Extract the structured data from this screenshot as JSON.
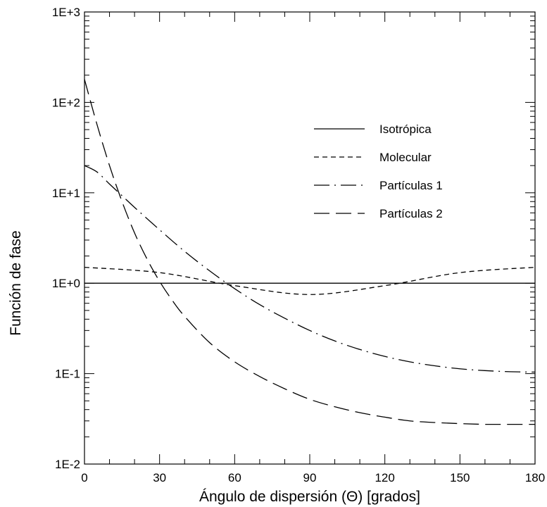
{
  "chart_data": {
    "type": "line",
    "xlabel": "Ángulo de dispersión (Θ) [grados]",
    "ylabel": "Función de fase",
    "xlim": [
      0,
      180
    ],
    "ylim": [
      0.01,
      1000
    ],
    "y_scale": "log",
    "grid": false,
    "legend_position": "upper-right",
    "x_ticks": [
      "0",
      "30",
      "60",
      "90",
      "120",
      "150",
      "180"
    ],
    "y_ticks": [
      "1E-2",
      "1E-1",
      "1E+0",
      "1E+1",
      "1E+2",
      "1E+3"
    ],
    "series": [
      {
        "name": "Isotrópica",
        "style": "solid",
        "x": [
          0,
          30,
          60,
          90,
          120,
          150,
          180
        ],
        "y": [
          1,
          1,
          1,
          1,
          1,
          1,
          1
        ]
      },
      {
        "name": "Molecular",
        "style": "short-dash",
        "x": [
          0,
          30,
          60,
          90,
          120,
          150,
          180
        ],
        "y": [
          1.5,
          1.31,
          0.94,
          0.75,
          0.94,
          1.31,
          1.5
        ]
      },
      {
        "name": "Partículas 1",
        "style": "long-dash-dot",
        "x": [
          0,
          5,
          10,
          15,
          20,
          30,
          40,
          50,
          60,
          70,
          80,
          90,
          100,
          110,
          120,
          130,
          140,
          150,
          160,
          170,
          180
        ],
        "y": [
          20,
          17,
          12.5,
          9.3,
          6.9,
          3.9,
          2.25,
          1.37,
          0.87,
          0.58,
          0.41,
          0.3,
          0.23,
          0.185,
          0.155,
          0.135,
          0.122,
          0.113,
          0.108,
          0.105,
          0.104
        ]
      },
      {
        "name": "Partículas 2",
        "style": "long-dash",
        "x": [
          0,
          5,
          10,
          15,
          20,
          25,
          30,
          35,
          40,
          50,
          60,
          70,
          80,
          90,
          100,
          110,
          120,
          130,
          140,
          150,
          160,
          170,
          180
        ],
        "y": [
          180,
          57,
          20,
          8,
          3.6,
          1.85,
          1.05,
          0.65,
          0.43,
          0.22,
          0.135,
          0.093,
          0.068,
          0.052,
          0.043,
          0.037,
          0.033,
          0.03,
          0.0288,
          0.028,
          0.0275,
          0.0275,
          0.0275
        ]
      }
    ]
  }
}
